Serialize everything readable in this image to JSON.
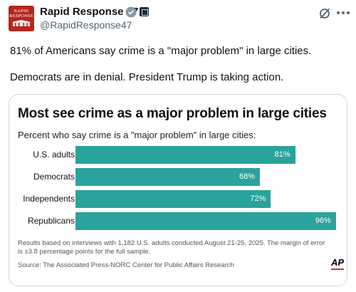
{
  "tweet": {
    "display_name": "Rapid Response 47",
    "handle": "@RapidResponse47",
    "avatar_text": "RAPID RESPONSE",
    "line1": "81% of Americans say crime is a \"major problem\" in large cities.",
    "line2": "Democrats are in denial. President Trump is taking action."
  },
  "icons": {
    "verified": "verified-badge-icon",
    "affiliate": "government-affiliate-icon",
    "grok": "grok-icon",
    "more": "more-options-icon"
  },
  "colors": {
    "bar": "#2aa39c",
    "verified": "#829aab",
    "avatar": "#b5261e"
  },
  "chart_data": {
    "type": "bar",
    "orientation": "horizontal",
    "title": "Most see crime as a major problem in large cities",
    "subtitle": "Percent who say crime is a \"major problem\" in large cities:",
    "categories": [
      "U.S. adults",
      "Democrats",
      "Independents",
      "Republicans"
    ],
    "values": [
      81,
      68,
      72,
      96
    ],
    "value_labels": [
      "81%",
      "68%",
      "72%",
      "96%"
    ],
    "xlim": [
      0,
      100
    ],
    "grid": false,
    "note": "Results based on interviews with 1,182 U.S. adults conducted August 21-25, 2025. The margin of error is ±3.8 percentage points for the full sample.",
    "source": "Source: The Associated Press-NORC Center for Public Affairs Research",
    "logo": "AP"
  }
}
